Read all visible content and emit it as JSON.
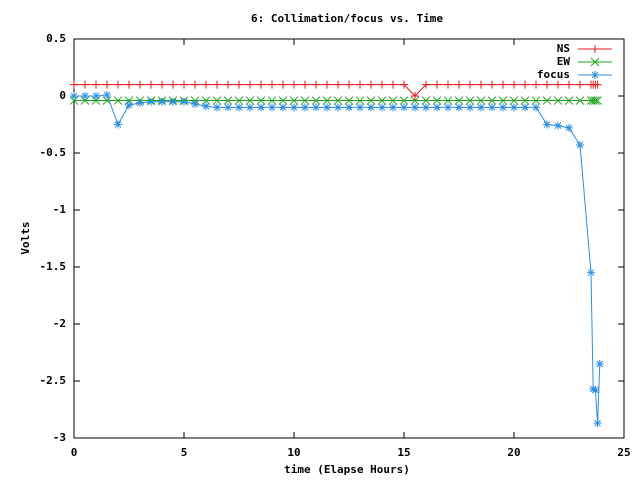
{
  "chart_data": {
    "type": "line",
    "title": "6: Collimation/focus vs. Time",
    "xlabel": "time (Elapse Hours)",
    "ylabel": "Volts",
    "x": [
      0,
      0.5,
      1,
      1.5,
      2,
      2.5,
      3,
      3.5,
      4,
      4.5,
      5,
      5.5,
      6,
      6.5,
      7,
      7.5,
      8,
      8.5,
      9,
      9.5,
      10,
      10.5,
      11,
      11.5,
      12,
      12.5,
      13,
      13.5,
      14,
      14.5,
      15,
      15.5,
      16,
      16.5,
      17,
      17.5,
      18,
      18.5,
      19,
      19.5,
      20,
      20.5,
      21,
      21.5,
      22,
      22.5,
      23,
      23.5,
      23.6,
      23.7,
      23.8,
      23.9
    ],
    "series": [
      {
        "name": "NS",
        "color": "#e41a1c",
        "marker": "plus",
        "values": [
          0.1,
          0.1,
          0.1,
          0.1,
          0.1,
          0.1,
          0.1,
          0.1,
          0.1,
          0.1,
          0.1,
          0.1,
          0.1,
          0.1,
          0.1,
          0.1,
          0.1,
          0.1,
          0.1,
          0.1,
          0.1,
          0.1,
          0.1,
          0.1,
          0.1,
          0.1,
          0.1,
          0.1,
          0.1,
          0.1,
          0.1,
          0,
          0.1,
          0.1,
          0.1,
          0.1,
          0.1,
          0.1,
          0.1,
          0.1,
          0.1,
          0.1,
          0.1,
          0.1,
          0.1,
          0.1,
          0.1,
          0.1,
          0.1,
          0.1,
          0.1,
          null
        ]
      },
      {
        "name": "EW",
        "color": "#1fa31f",
        "marker": "cross",
        "values": [
          -0.04,
          -0.04,
          -0.04,
          -0.04,
          -0.04,
          -0.04,
          -0.04,
          -0.04,
          -0.04,
          -0.04,
          -0.04,
          -0.04,
          -0.04,
          -0.04,
          -0.04,
          -0.04,
          -0.04,
          -0.04,
          -0.04,
          -0.04,
          -0.04,
          -0.04,
          -0.04,
          -0.04,
          -0.04,
          -0.04,
          -0.04,
          -0.04,
          -0.04,
          -0.04,
          -0.04,
          -0.04,
          -0.04,
          -0.04,
          -0.04,
          -0.04,
          -0.04,
          -0.04,
          -0.04,
          -0.04,
          -0.04,
          -0.04,
          -0.04,
          -0.04,
          -0.04,
          -0.04,
          -0.04,
          -0.04,
          -0.04,
          -0.04,
          -0.04,
          null
        ]
      },
      {
        "name": "focus",
        "color": "#2c8ee0",
        "marker": "star",
        "values": [
          0,
          0,
          0,
          0.01,
          -0.25,
          -0.08,
          -0.06,
          -0.05,
          -0.05,
          -0.05,
          -0.05,
          -0.07,
          -0.09,
          -0.1,
          -0.1,
          -0.1,
          -0.1,
          -0.1,
          -0.1,
          -0.1,
          -0.1,
          -0.1,
          -0.1,
          -0.1,
          -0.1,
          -0.1,
          -0.1,
          -0.1,
          -0.1,
          -0.1,
          -0.1,
          -0.1,
          -0.1,
          -0.1,
          -0.1,
          -0.1,
          -0.1,
          -0.1,
          -0.1,
          -0.1,
          -0.1,
          -0.1,
          -0.1,
          -0.25,
          -0.26,
          -0.28,
          -0.43,
          -1.55,
          -2.57,
          -2.58,
          -2.87,
          -2.35
        ]
      }
    ],
    "xlim": [
      0,
      25
    ],
    "xticks": [
      0,
      5,
      10,
      15,
      20,
      25
    ],
    "ylim": [
      -3,
      0.5
    ],
    "yticks": [
      0.5,
      0,
      -0.5,
      -1,
      -1.5,
      -2,
      -2.5,
      -3
    ],
    "grid": false,
    "legend": "top-right"
  }
}
